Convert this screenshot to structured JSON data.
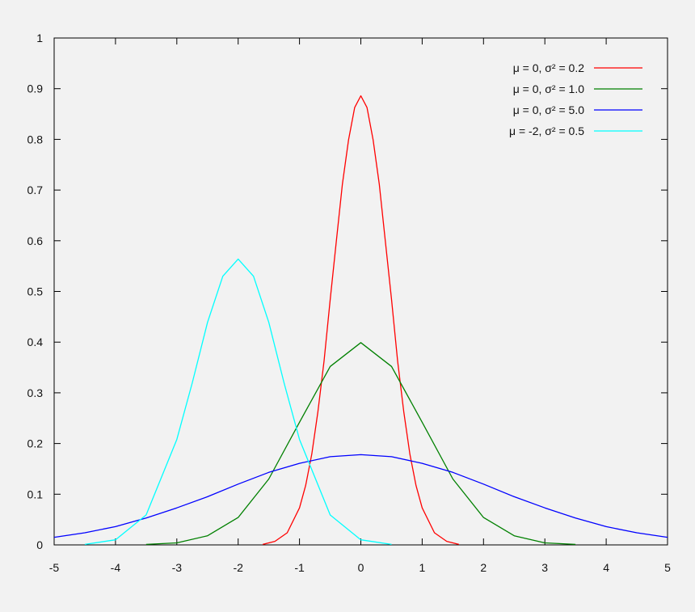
{
  "chart_data": {
    "type": "line",
    "title": "",
    "xlabel": "",
    "ylabel": "",
    "xlim": [
      -5,
      5
    ],
    "ylim": [
      0,
      1
    ],
    "x_ticks": [
      -5,
      -4,
      -3,
      -2,
      -1,
      0,
      1,
      2,
      3,
      4,
      5
    ],
    "x_tick_labels": [
      "-5",
      "-4",
      "-3",
      "-2",
      "-1",
      "0",
      "1",
      "2",
      "3",
      "4",
      "5"
    ],
    "y_ticks": [
      0,
      0.1,
      0.2,
      0.3,
      0.4,
      0.5,
      0.6,
      0.7,
      0.8,
      0.9,
      1
    ],
    "y_tick_labels": [
      "0",
      "0.1",
      "0.2",
      "0.3",
      "0.4",
      "0.5",
      "0.6",
      "0.7",
      "0.8",
      "0.9",
      "1"
    ],
    "grid": false,
    "legend_position": "top-right",
    "series": [
      {
        "name": "μ = 0, σ² = 0.2",
        "color": "#ff0000",
        "x": [
          -1.6,
          -1.4,
          -1.2,
          -1.0,
          -0.9,
          -0.8,
          -0.7,
          -0.6,
          -0.5,
          -0.4,
          -0.3,
          -0.2,
          -0.1,
          0.0,
          0.1,
          0.2,
          0.3,
          0.4,
          0.5,
          0.6,
          0.7,
          0.8,
          0.9,
          1.0,
          1.2,
          1.4,
          1.6
        ],
        "y": [
          0.001,
          0.007,
          0.024,
          0.073,
          0.117,
          0.179,
          0.263,
          0.363,
          0.484,
          0.598,
          0.712,
          0.799,
          0.863,
          0.886,
          0.863,
          0.799,
          0.712,
          0.598,
          0.484,
          0.363,
          0.263,
          0.179,
          0.117,
          0.073,
          0.024,
          0.007,
          0.001
        ]
      },
      {
        "name": "μ = 0, σ² = 1.0",
        "color": "#008000",
        "x": [
          -3.5,
          -3.0,
          -2.5,
          -2.0,
          -1.5,
          -1.0,
          -0.5,
          0.0,
          0.5,
          1.0,
          1.5,
          2.0,
          2.5,
          3.0,
          3.5
        ],
        "y": [
          0.001,
          0.004,
          0.018,
          0.054,
          0.13,
          0.242,
          0.352,
          0.399,
          0.352,
          0.242,
          0.13,
          0.054,
          0.018,
          0.004,
          0.001
        ]
      },
      {
        "name": "μ = 0, σ² = 5.0",
        "color": "#0000ff",
        "x": [
          -5.0,
          -4.5,
          -4.0,
          -3.5,
          -3.0,
          -2.5,
          -2.0,
          -1.5,
          -1.0,
          -0.5,
          0.0,
          0.5,
          1.0,
          1.5,
          2.0,
          2.5,
          3.0,
          3.5,
          4.0,
          4.5,
          5.0
        ],
        "y": [
          0.015,
          0.024,
          0.036,
          0.053,
          0.073,
          0.095,
          0.12,
          0.143,
          0.161,
          0.174,
          0.178,
          0.174,
          0.161,
          0.143,
          0.12,
          0.095,
          0.073,
          0.053,
          0.036,
          0.024,
          0.015
        ]
      },
      {
        "name": "μ = -2, σ² = 0.5",
        "color": "#00ffff",
        "x": [
          -4.5,
          -4.0,
          -3.5,
          -3.0,
          -2.75,
          -2.5,
          -2.25,
          -2.0,
          -1.75,
          -1.5,
          -1.25,
          -1.0,
          -0.5,
          0.0,
          0.5
        ],
        "y": [
          0.001,
          0.01,
          0.059,
          0.208,
          0.319,
          0.439,
          0.53,
          0.564,
          0.53,
          0.439,
          0.319,
          0.208,
          0.059,
          0.01,
          0.001
        ]
      }
    ]
  }
}
